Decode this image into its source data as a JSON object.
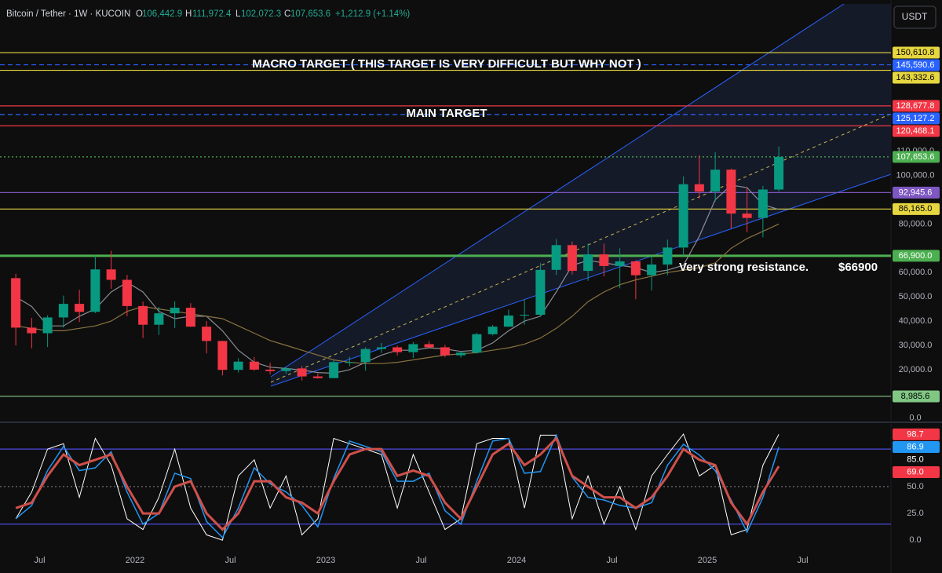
{
  "header": {
    "symbol": "Bitcoin / Tether · 1W · KUCOIN",
    "fields": [
      {
        "key": "O",
        "value": "106,442.9"
      },
      {
        "key": "H",
        "value": "111,972.4"
      },
      {
        "key": "L",
        "value": "102,072.3"
      },
      {
        "key": "C",
        "value": "107,653.6"
      }
    ],
    "change": "+1,212.9 (+1.14%)",
    "currency": "USDT"
  },
  "annotations": {
    "macro": "MACRO TARGET ( THIS TARGET IS VERY DIFFICULT BUT WHY NOT )",
    "main": "MAIN TARGET",
    "resistance": "Very strong resistance.",
    "resistance_price": "$66900"
  },
  "chart_data": [
    {
      "type": "candlestick",
      "x": [
        "2021-05",
        "2021-06",
        "2021-07",
        "2021-08",
        "2021-09",
        "2021-10",
        "2021-11",
        "2021-12",
        "2022-01",
        "2022-02",
        "2022-03",
        "2022-04",
        "2022-05",
        "2022-06",
        "2022-07",
        "2022-08",
        "2022-09",
        "2022-10",
        "2022-11",
        "2022-12",
        "2023-01",
        "2023-02",
        "2023-03",
        "2023-04",
        "2023-05",
        "2023-06",
        "2023-07",
        "2023-08",
        "2023-09",
        "2023-10",
        "2023-11",
        "2023-12",
        "2024-01",
        "2024-02",
        "2024-03",
        "2024-04",
        "2024-05",
        "2024-06",
        "2024-07",
        "2024-08",
        "2024-09",
        "2024-10",
        "2024-11",
        "2024-12",
        "2025-01",
        "2025-02",
        "2025-03",
        "2025-04",
        "2025-05"
      ],
      "open": [
        57700,
        37300,
        35000,
        41500,
        47100,
        43800,
        61300,
        57000,
        46200,
        38500,
        43200,
        45500,
        37700,
        31800,
        19900,
        23300,
        20000,
        19400,
        20500,
        17200,
        16500,
        23100,
        23100,
        28500,
        29200,
        27200,
        30500,
        29200,
        25900,
        27000,
        34600,
        37700,
        42300,
        42600,
        61100,
        71300,
        60700,
        67500,
        62700,
        64600,
        58900,
        63300,
        70300,
        96400,
        93400,
        102400,
        84300,
        82500,
        94200
      ],
      "high": [
        59500,
        41300,
        42400,
        50500,
        52900,
        67000,
        69000,
        59000,
        48000,
        45800,
        48200,
        47400,
        40000,
        31900,
        24700,
        25200,
        22800,
        21000,
        21500,
        18400,
        23900,
        25300,
        29200,
        31000,
        29900,
        31400,
        31800,
        30200,
        27500,
        35200,
        38400,
        44700,
        48900,
        63900,
        73800,
        72800,
        71900,
        71900,
        70000,
        65000,
        66500,
        73600,
        99600,
        108300,
        109600,
        102800,
        95000,
        95700,
        111972.4
      ],
      "low": [
        30000,
        28800,
        29300,
        37300,
        39600,
        43300,
        53300,
        42000,
        33000,
        34300,
        37100,
        37600,
        26700,
        17600,
        18800,
        19500,
        18100,
        18200,
        15500,
        16300,
        16500,
        21400,
        19500,
        26900,
        25800,
        24800,
        28900,
        25100,
        24900,
        26600,
        34100,
        37600,
        38500,
        41900,
        59000,
        59200,
        56600,
        58400,
        53500,
        49000,
        52600,
        58900,
        66800,
        90500,
        89200,
        78200,
        76600,
        74500,
        93400
      ],
      "close": [
        37300,
        35000,
        41500,
        47100,
        43800,
        61300,
        57000,
        46200,
        38500,
        43200,
        45500,
        37700,
        31800,
        19900,
        23300,
        20000,
        19400,
        20500,
        17200,
        16500,
        23100,
        23100,
        28500,
        29200,
        27200,
        30500,
        29200,
        25900,
        27000,
        34600,
        37700,
        42300,
        42600,
        61100,
        71300,
        60700,
        67500,
        62700,
        64600,
        58900,
        63300,
        70300,
        96400,
        93400,
        102400,
        84300,
        82500,
        94200,
        107653.6
      ],
      "up_color": "#089981",
      "down_color": "#f23645",
      "moving_averages": [
        {
          "color": "#8c8c96",
          "values": [
            50000,
            46000,
            38000,
            38000,
            42000,
            45000,
            52000,
            56000,
            52000,
            44000,
            41000,
            42000,
            42000,
            36000,
            28000,
            23000,
            21000,
            20500,
            19800,
            18800,
            18500,
            20000,
            23000,
            26000,
            28000,
            28000,
            29000,
            28500,
            27500,
            28000,
            31000,
            36000,
            40000,
            42000,
            52000,
            63000,
            65000,
            64000,
            63000,
            62000,
            60000,
            61000,
            63000,
            75000,
            90000,
            96000,
            95000,
            88000,
            86000
          ]
        },
        {
          "color": "#8a7340",
          "values": [
            38000,
            37000,
            36000,
            36000,
            37000,
            38000,
            40000,
            44000,
            46000,
            45000,
            44000,
            43000,
            42000,
            41000,
            38000,
            35000,
            32000,
            30000,
            28000,
            26000,
            24000,
            23000,
            22500,
            22500,
            23000,
            24000,
            25000,
            26000,
            26500,
            27000,
            28000,
            29000,
            30500,
            33000,
            37000,
            42000,
            48000,
            52000,
            55000,
            57000,
            58500,
            60000,
            61000,
            62000,
            64000,
            70000,
            74000,
            77000,
            80000
          ]
        }
      ],
      "levels": [
        {
          "value": 150610.8,
          "label": "150,610.8",
          "color": "#e6d640",
          "text_color": "#000000",
          "style": "solid"
        },
        {
          "value": 145590.6,
          "label": "145,590.6",
          "color": "#2962ff",
          "text_color": "#ffffff",
          "style": "dashed"
        },
        {
          "value": 143332.6,
          "label": "143,332.6",
          "color": "#e6d640",
          "text_color": "#000000",
          "style": "solid"
        },
        {
          "value": 128677.8,
          "label": "128,677.8",
          "color": "#f23645",
          "text_color": "#ffffff",
          "style": "solid"
        },
        {
          "value": 125127.2,
          "label": "125,127.2",
          "color": "#2962ff",
          "text_color": "#ffffff",
          "style": "dashed"
        },
        {
          "value": 120468.1,
          "label": "120,468.1",
          "color": "#f23645",
          "text_color": "#ffffff",
          "style": "solid"
        },
        {
          "value": 107653.6,
          "label": "107,653.6",
          "color": "#4caf50",
          "text_color": "#ffffff",
          "style": "dotted"
        },
        {
          "value": 92945.6,
          "label": "92,945.6",
          "color": "#7e57c2",
          "text_color": "#ffffff",
          "style": "solid"
        },
        {
          "value": 86165.0,
          "label": "86,165.0",
          "color": "#e6d640",
          "text_color": "#000000",
          "style": "solid"
        },
        {
          "value": 66900.0,
          "label": "66,900.0",
          "color": "#4caf50",
          "text_color": "#ffffff",
          "style": "thick"
        },
        {
          "value": 8985.6,
          "label": "8,985.6",
          "color": "#81c784",
          "text_color": "#000000",
          "style": "solid"
        }
      ],
      "ylim": [
        -1700,
        172300
      ],
      "yticks": [
        {
          "value": 0,
          "label": "0.0"
        },
        {
          "value": 20000,
          "label": "20,000.0"
        },
        {
          "value": 30000,
          "label": "30,000.0"
        },
        {
          "value": 40000,
          "label": "40,000.0"
        },
        {
          "value": 50000,
          "label": "50,000.0"
        },
        {
          "value": 60000,
          "label": "60,000.0"
        },
        {
          "value": 80000,
          "label": "80,000.0"
        },
        {
          "value": 100000,
          "label": "100,000.0"
        },
        {
          "value": 110000,
          "label": "110,000.0"
        }
      ],
      "xticks": [
        {
          "value": "2021-07",
          "label": "Jul"
        },
        {
          "value": "2022-01",
          "label": "2022"
        },
        {
          "value": "2022-07",
          "label": "Jul"
        },
        {
          "value": "2023-01",
          "label": "2023"
        },
        {
          "value": "2023-07",
          "label": "Jul"
        },
        {
          "value": "2024-01",
          "label": "2024"
        },
        {
          "value": "2024-07",
          "label": "Jul"
        },
        {
          "value": "2025-01",
          "label": "2025"
        },
        {
          "value": "2025-07",
          "label": "Jul"
        }
      ]
    },
    {
      "type": "line",
      "x": [
        "2021-05",
        "2021-06",
        "2021-07",
        "2021-08",
        "2021-09",
        "2021-10",
        "2021-11",
        "2021-12",
        "2022-01",
        "2022-02",
        "2022-03",
        "2022-04",
        "2022-05",
        "2022-06",
        "2022-07",
        "2022-08",
        "2022-09",
        "2022-10",
        "2022-11",
        "2022-12",
        "2023-01",
        "2023-02",
        "2023-03",
        "2023-04",
        "2023-05",
        "2023-06",
        "2023-07",
        "2023-08",
        "2023-09",
        "2023-10",
        "2023-11",
        "2023-12",
        "2024-01",
        "2024-02",
        "2024-03",
        "2024-04",
        "2024-05",
        "2024-06",
        "2024-07",
        "2024-08",
        "2024-09",
        "2024-10",
        "2024-11",
        "2024-12",
        "2025-01",
        "2025-02",
        "2025-03",
        "2025-04",
        "2025-05"
      ],
      "series": [
        {
          "color": "#ffffff",
          "label_color": "#f23645",
          "width": 1,
          "values": [
            20,
            45,
            85,
            90,
            40,
            95,
            70,
            20,
            10,
            40,
            85,
            30,
            5,
            0,
            60,
            75,
            30,
            60,
            5,
            20,
            95,
            90,
            85,
            80,
            30,
            80,
            45,
            10,
            20,
            90,
            95,
            95,
            30,
            98,
            98,
            20,
            60,
            15,
            50,
            10,
            60,
            80,
            99,
            60,
            70,
            5,
            10,
            70,
            98.7
          ]
        },
        {
          "color": "#2196f3",
          "label_color": "#2196f3",
          "width": 1.5,
          "values": [
            20,
            32.5,
            65,
            87.5,
            65,
            67.5,
            82.5,
            45,
            15,
            25,
            62.5,
            57.5,
            17.5,
            2.5,
            30,
            67.5,
            52.5,
            45,
            32.5,
            12.5,
            57.5,
            92.5,
            87.5,
            82.5,
            55,
            55,
            62.5,
            27.5,
            15,
            55,
            92.5,
            95,
            62.5,
            64,
            98,
            59,
            40,
            37.5,
            32.5,
            30,
            35,
            70,
            89.5,
            79.5,
            65,
            37.5,
            7.5,
            40,
            86.9
          ]
        },
        {
          "color": "#d0504a",
          "label_color": "#f23645",
          "width": 3,
          "values": [
            30,
            35,
            60,
            80,
            70,
            75,
            80,
            50,
            25,
            25,
            50,
            55,
            25,
            10,
            25,
            55,
            55,
            40,
            35,
            25,
            55,
            80,
            85,
            85,
            60,
            65,
            60,
            35,
            20,
            50,
            80,
            90,
            70,
            80,
            95,
            60,
            50,
            40,
            40,
            30,
            40,
            60,
            85,
            75,
            70,
            35,
            15,
            45,
            69.0
          ],
          "value_labels": [
            null,
            null,
            null,
            null,
            null,
            null,
            null,
            null,
            null,
            null,
            null,
            null,
            null,
            null,
            null,
            null,
            null,
            null,
            null,
            null,
            null,
            null,
            null,
            null,
            null,
            null,
            null,
            null,
            null,
            null,
            null,
            null,
            null,
            null,
            null,
            null,
            null,
            null,
            null,
            null,
            null,
            null,
            null,
            null,
            null,
            null,
            null,
            null,
            "69.0"
          ]
        }
      ],
      "levels": [
        {
          "value": 85,
          "label": "85.0",
          "color": "#4a4ae0",
          "style": "solid"
        },
        {
          "value": 50,
          "color": "#787b86",
          "style": "dotted"
        },
        {
          "value": 15,
          "color": "#4a4ae0",
          "style": "solid"
        }
      ],
      "ylim": [
        -13,
        110
      ],
      "yticks": [
        {
          "value": 0,
          "label": "0.0"
        },
        {
          "value": 25,
          "label": "25.0"
        },
        {
          "value": 50,
          "label": "50.0"
        }
      ]
    }
  ]
}
